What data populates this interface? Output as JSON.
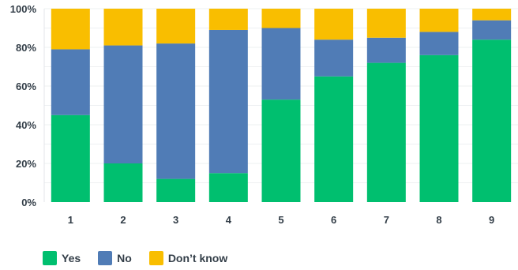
{
  "chart_data": {
    "type": "bar",
    "stacked": true,
    "categories": [
      "1",
      "2",
      "3",
      "4",
      "5",
      "6",
      "7",
      "8",
      "9"
    ],
    "series": [
      {
        "name": "Yes",
        "color": "#00bf6f",
        "values": [
          45,
          20,
          12,
          15,
          53,
          65,
          72,
          76,
          84
        ]
      },
      {
        "name": "No",
        "color": "#507cb6",
        "values": [
          34,
          61,
          70,
          74,
          37,
          19,
          13,
          12,
          10
        ]
      },
      {
        "name": "Don't know",
        "color": "#f9be00",
        "values": [
          21,
          19,
          18,
          11,
          10,
          16,
          15,
          12,
          6
        ]
      }
    ],
    "ylim": [
      0,
      100
    ],
    "yticks": [
      "0%",
      "20%",
      "40%",
      "60%",
      "80%",
      "100%"
    ],
    "grid": true,
    "legend_position": "bottom-left",
    "title": "",
    "xlabel": "",
    "ylabel": ""
  },
  "legend": [
    {
      "label": "Yes",
      "color": "#00bf6f"
    },
    {
      "label": "No",
      "color": "#507cb6"
    },
    {
      "label": "Don’t know",
      "color": "#f9be00"
    }
  ]
}
